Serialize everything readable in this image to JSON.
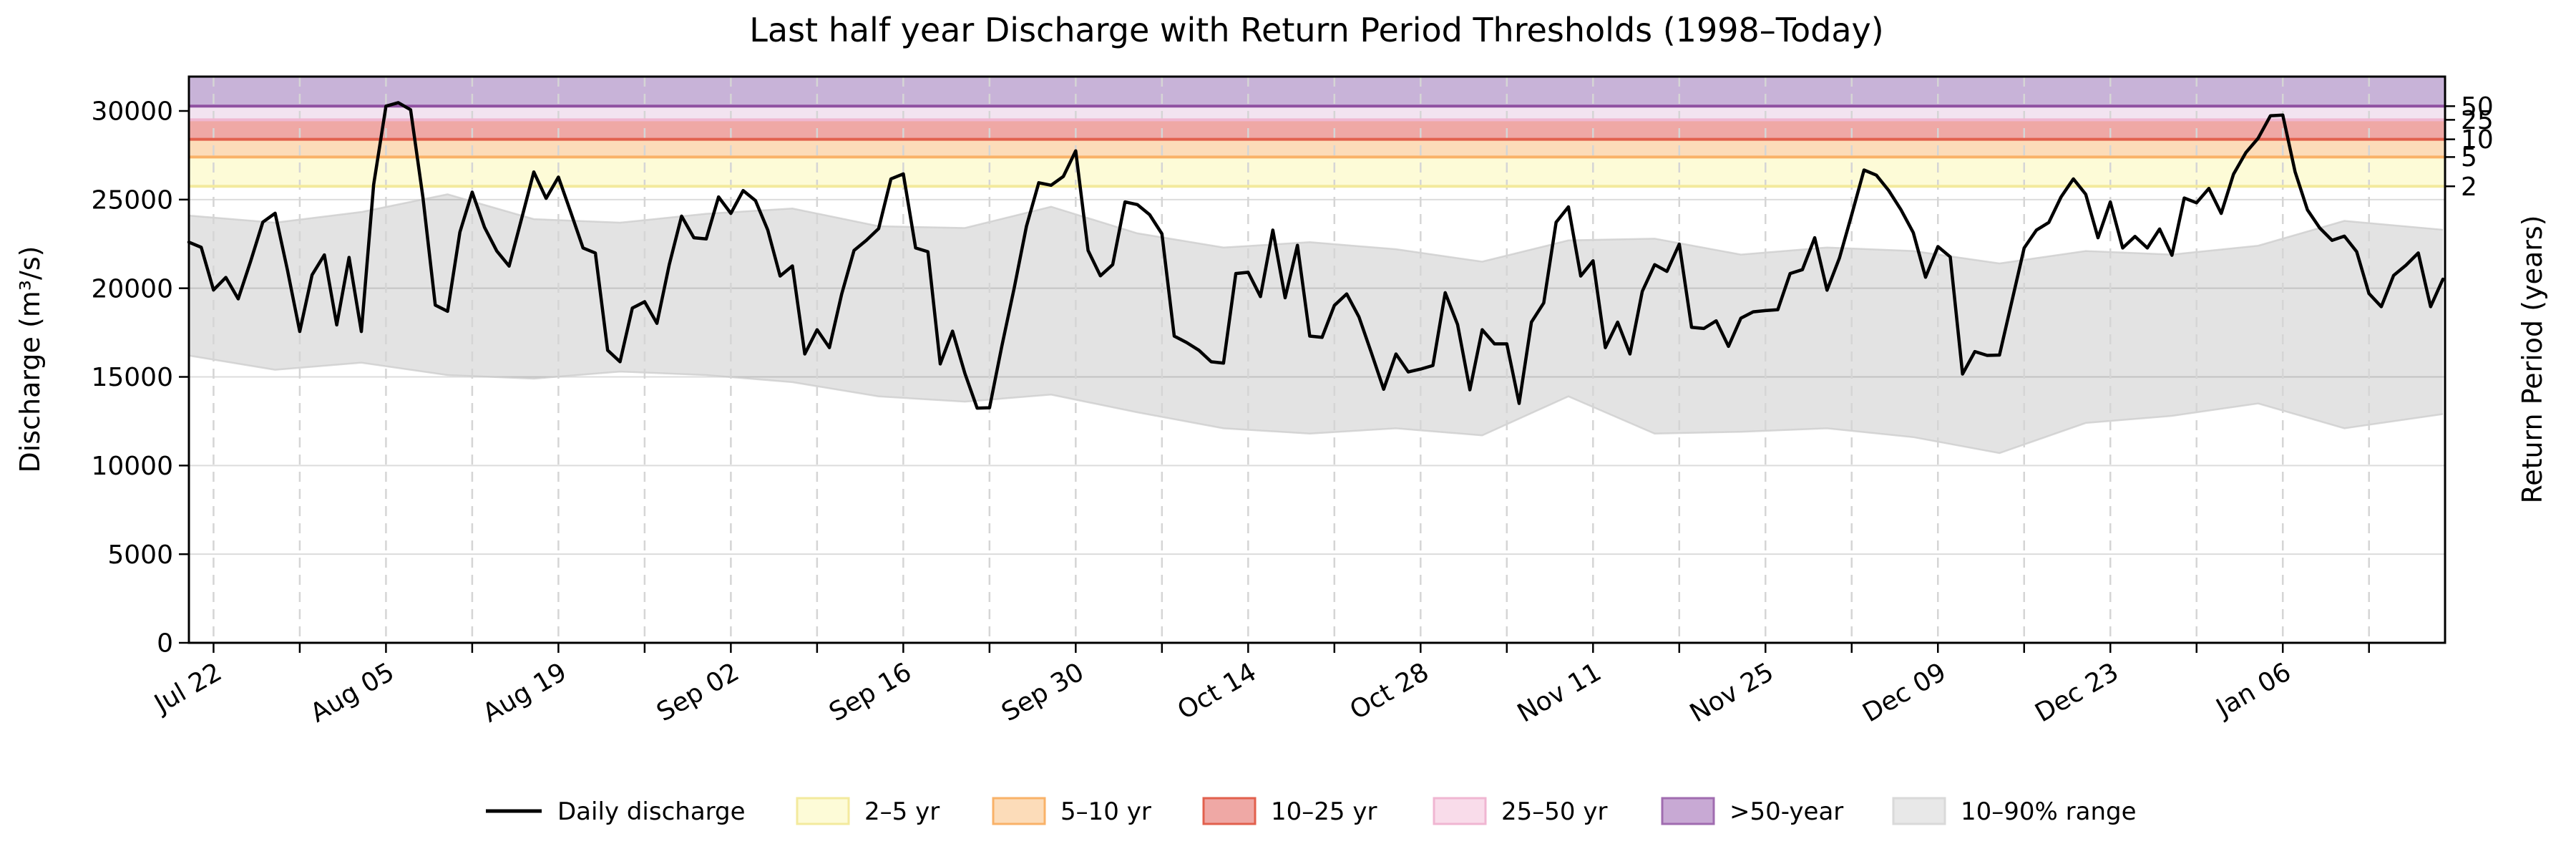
{
  "title": "Last half year Discharge with Return Period Thresholds (1998–Today)",
  "axes": {
    "left_label": "Discharge (m³/s)",
    "right_label": "Return Period (years)",
    "y_ticks": [
      0,
      5000,
      10000,
      15000,
      20000,
      25000,
      30000
    ],
    "y_tick_labels": [
      "0",
      "5000",
      "10000",
      "15000",
      "20000",
      "25000",
      "30000"
    ],
    "x_tick_labels": [
      "Jul 22",
      "Aug 05",
      "Aug 19",
      "Sep 02",
      "Sep 16",
      "Sep 30",
      "Oct 14",
      "Oct 28",
      "Nov 11",
      "Nov 25",
      "Dec 09",
      "Dec 23",
      "Jan 06"
    ],
    "right_tick_labels": [
      "2",
      "5",
      "10",
      "25",
      "50"
    ]
  },
  "legend": {
    "items": [
      {
        "label": "Daily discharge",
        "swatch": "line",
        "color": "#000000"
      },
      {
        "label": "2–5 yr",
        "swatch": "patch",
        "fill": "#fdfbd7",
        "edge": "#f3ea9d"
      },
      {
        "label": "5–10 yr",
        "swatch": "patch",
        "fill": "#fcdcb9",
        "edge": "#f9b268"
      },
      {
        "label": "10–25 yr",
        "swatch": "patch",
        "fill": "#efa8a5",
        "edge": "#e2604d"
      },
      {
        "label": "25–50 yr",
        "swatch": "patch",
        "fill": "#f9dcea",
        "edge": "#f0b6d2"
      },
      {
        "label": ">50-year",
        "swatch": "patch",
        "fill": "#c8a9d4",
        "edge": "#a06cb0"
      },
      {
        "label": "10–90% range",
        "swatch": "patch",
        "fill": "#e8e8e8",
        "edge": "#d9d9d9"
      }
    ]
  },
  "chart_data": {
    "type": "line",
    "title": "Last half year Discharge with Return Period Thresholds (1998–Today)",
    "xlabel": "",
    "ylabel": "Discharge (m³/s)",
    "ylabel_right": "Return Period (years)",
    "ylim": [
      0,
      31938
    ],
    "y_ticks": [
      0,
      5000,
      10000,
      15000,
      20000,
      25000,
      30000
    ],
    "grid": {
      "horizontal": "solid",
      "vertical": "dashed-weekly"
    },
    "legend_position": "bottom-center-row",
    "x_axis": {
      "n_days": 184,
      "start_label": "Jul 20",
      "end_label": "Jan 19",
      "minor_tick_every_days": 7,
      "label_every_days": 14,
      "first_tick_day_index": 2,
      "tick_labels": [
        "Jul 22",
        "Aug 05",
        "Aug 19",
        "Sep 02",
        "Sep 16",
        "Sep 30",
        "Oct 14",
        "Oct 28",
        "Nov 11",
        "Nov 25",
        "Dec 09",
        "Dec 23",
        "Jan 06"
      ]
    },
    "thresholds": [
      {
        "return_period_years": 2,
        "discharge": 25750
      },
      {
        "return_period_years": 5,
        "discharge": 27400
      },
      {
        "return_period_years": 10,
        "discharge": 28400
      },
      {
        "return_period_years": 25,
        "discharge": 29500
      },
      {
        "return_period_years": 50,
        "discharge": 30270
      }
    ],
    "bands": [
      {
        "label": "2–5 yr",
        "lo": 25750,
        "hi": 27400,
        "fill": "#fdfbd7",
        "edge": "#f3ea9d"
      },
      {
        "label": "5–10 yr",
        "lo": 27400,
        "hi": 28400,
        "fill": "#fcdcb9",
        "edge": "#f9b268"
      },
      {
        "label": "10–25 yr",
        "lo": 28400,
        "hi": 29500,
        "fill": "#efa8a5",
        "edge": "#e2604d"
      },
      {
        "label": "25–50 yr",
        "lo": 29500,
        "hi": 30270,
        "fill": "#f2e3f0",
        "edge": "#efb7d0"
      },
      {
        "label": ">50-year",
        "lo": 30270,
        "hi": 31938,
        "fill": "#c8b3d8",
        "edge": "#8f51a1"
      }
    ],
    "series": [
      {
        "name": "Daily discharge",
        "style": {
          "color": "#000000",
          "width": 4.5
        },
        "values": [
          22600,
          22310,
          19900,
          20610,
          19400,
          21500,
          23730,
          24230,
          21030,
          17560,
          20750,
          21880,
          17930,
          21740,
          17560,
          25850,
          30270,
          30470,
          30070,
          25140,
          19050,
          18700,
          23160,
          25420,
          23440,
          22100,
          21250,
          23900,
          26560,
          25070,
          26270,
          24290,
          22270,
          21990,
          16500,
          15850,
          18880,
          19240,
          18020,
          21330,
          24070,
          22850,
          22780,
          25150,
          24220,
          25510,
          24940,
          23280,
          20690,
          21260,
          16290,
          17660,
          16650,
          19680,
          22130,
          22700,
          23360,
          26170,
          26450,
          22270,
          22060,
          15730,
          17580,
          15200,
          13240,
          13260,
          16740,
          20000,
          23500,
          25950,
          25810,
          26310,
          27750,
          22130,
          20700,
          21330,
          24870,
          24720,
          24150,
          23070,
          17300,
          16940,
          16500,
          15850,
          15780,
          20830,
          20900,
          19530,
          23280,
          19460,
          22420,
          17300,
          17230,
          19030,
          19680,
          18380,
          16360,
          14300,
          16290,
          15280,
          15440,
          15640,
          19750,
          17950,
          14270,
          17660,
          16860,
          16860,
          13500,
          18090,
          19170,
          23720,
          24590,
          20690,
          21550,
          16650,
          18090,
          16290,
          19820,
          21330,
          20950,
          22490,
          17800,
          17730,
          18160,
          16720,
          18310,
          18670,
          18740,
          18790,
          20830,
          21050,
          22850,
          19890,
          21700,
          24150,
          26670,
          26380,
          25520,
          24430,
          23140,
          20620,
          22350,
          21770,
          15160,
          16430,
          16210,
          16230,
          19240,
          22270,
          23280,
          23710,
          25150,
          26170,
          25300,
          22850,
          24870,
          22270,
          22920,
          22270,
          23340,
          21860,
          25090,
          24820,
          25630,
          24220,
          26440,
          27650,
          28460,
          29730,
          29770,
          26570,
          24420,
          23400,
          22700,
          22940,
          22060,
          19700,
          18960,
          20720,
          21300,
          21990,
          18960,
          20510
        ]
      },
      {
        "name": "10–90% range upper",
        "style": {
          "fill": "#e4e4e4"
        },
        "x_days": [
          0,
          7,
          14,
          21,
          28,
          35,
          42,
          49,
          56,
          63,
          70,
          77,
          84,
          91,
          98,
          105,
          112,
          119,
          126,
          133,
          140,
          147,
          154,
          161,
          168,
          175,
          183
        ],
        "values": [
          24100,
          23700,
          24300,
          25300,
          23900,
          23700,
          24200,
          24500,
          23500,
          23400,
          24600,
          23100,
          22300,
          22600,
          22200,
          21500,
          22700,
          22800,
          21900,
          22300,
          22100,
          21400,
          22100,
          21900,
          22400,
          23800,
          23300
        ]
      },
      {
        "name": "10–90% range lower",
        "style": {
          "fill": "#e4e4e4"
        },
        "x_days": [
          0,
          7,
          14,
          21,
          28,
          35,
          42,
          49,
          56,
          63,
          70,
          77,
          84,
          91,
          98,
          105,
          112,
          119,
          126,
          133,
          140,
          147,
          154,
          161,
          168,
          175,
          183
        ],
        "values": [
          16200,
          15400,
          15800,
          15100,
          14900,
          15300,
          15100,
          14700,
          13900,
          13600,
          14000,
          13000,
          12100,
          11800,
          12100,
          11700,
          13900,
          11800,
          11900,
          12100,
          11600,
          10700,
          12400,
          12800,
          13500,
          12100,
          12900
        ]
      }
    ]
  },
  "colors": {
    "line": "#000000",
    "grid_h": "#dcdcdc",
    "grid_v": "#d5d5d5",
    "range_band": "#e4e4e4",
    "spine": "#000000"
  }
}
